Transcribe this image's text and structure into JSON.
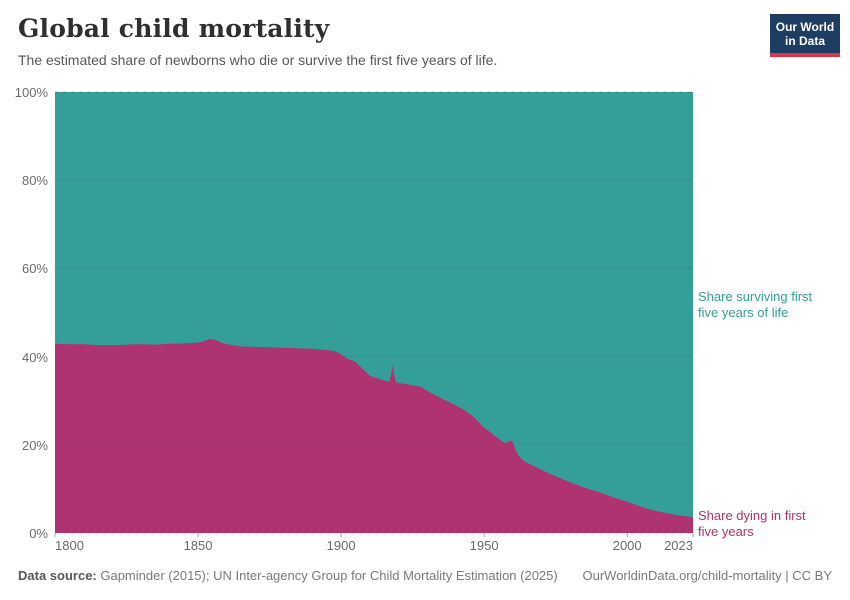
{
  "header": {
    "title": "Global child mortality",
    "subtitle": "The estimated share of newborns who die or survive the first five years of life."
  },
  "logo": {
    "line1": "Our World",
    "line2": "in Data",
    "bg_color": "#1d3d63",
    "bar_color": "#dc3545"
  },
  "annotations": {
    "surviving_label": "Share surviving first\nfive years of life",
    "dying_label": "Share dying in first\nfive years"
  },
  "footer": {
    "source_label": "Data source:",
    "source_text": " Gapminder (2015); UN Inter-agency Group for Child Mortality Estimation (2025)",
    "link_text": "OurWorldinData.org/child-mortality | CC BY"
  },
  "chart_data": {
    "type": "area",
    "stacked": true,
    "title": "Global child mortality",
    "x_range": [
      1800,
      2023
    ],
    "y_range": [
      0,
      100
    ],
    "y_unit": "%",
    "x_ticks": [
      1800,
      1850,
      1900,
      1950,
      2000,
      2023
    ],
    "y_ticks": [
      0,
      20,
      40,
      60,
      80,
      100
    ],
    "grid": "dashed horizontal gridlines drawn over the areas",
    "gridline_color": "rgba(90,90,90,0.35)",
    "tick_color": "#a5a5a5",
    "series": [
      {
        "name": "Share dying in first five years",
        "color": "#ae3370",
        "unit": "%",
        "points": [
          [
            1800,
            42.9
          ],
          [
            1805,
            42.8
          ],
          [
            1810,
            42.8
          ],
          [
            1815,
            42.6
          ],
          [
            1820,
            42.6
          ],
          [
            1825,
            42.7
          ],
          [
            1830,
            42.8
          ],
          [
            1835,
            42.7
          ],
          [
            1840,
            42.9
          ],
          [
            1845,
            43.0
          ],
          [
            1850,
            43.2
          ],
          [
            1852,
            43.5
          ],
          [
            1854,
            44.0
          ],
          [
            1856,
            43.8
          ],
          [
            1858,
            43.2
          ],
          [
            1860,
            42.8
          ],
          [
            1865,
            42.3
          ],
          [
            1870,
            42.2
          ],
          [
            1875,
            42.1
          ],
          [
            1880,
            42.0
          ],
          [
            1885,
            41.9
          ],
          [
            1890,
            41.8
          ],
          [
            1895,
            41.5
          ],
          [
            1898,
            41.2
          ],
          [
            1900,
            40.5
          ],
          [
            1902,
            39.6
          ],
          [
            1905,
            38.8
          ],
          [
            1908,
            36.9
          ],
          [
            1910,
            35.7
          ],
          [
            1912,
            35.2
          ],
          [
            1914,
            34.8
          ],
          [
            1916,
            34.4
          ],
          [
            1917,
            34.3
          ],
          [
            1918,
            38.0
          ],
          [
            1919,
            34.3
          ],
          [
            1920,
            34.0
          ],
          [
            1922,
            33.8
          ],
          [
            1925,
            33.5
          ],
          [
            1928,
            33.1
          ],
          [
            1930,
            32.3
          ],
          [
            1933,
            31.2
          ],
          [
            1936,
            30.2
          ],
          [
            1939,
            29.3
          ],
          [
            1941,
            28.6
          ],
          [
            1943,
            27.9
          ],
          [
            1945,
            27.0
          ],
          [
            1947,
            25.9
          ],
          [
            1949,
            24.5
          ],
          [
            1950,
            23.9
          ],
          [
            1952,
            22.9
          ],
          [
            1954,
            21.9
          ],
          [
            1956,
            20.9
          ],
          [
            1957,
            20.4
          ],
          [
            1958,
            20.6
          ],
          [
            1959,
            21.0
          ],
          [
            1960,
            20.6
          ],
          [
            1961,
            18.8
          ],
          [
            1962,
            17.6
          ],
          [
            1963,
            16.9
          ],
          [
            1964,
            16.3
          ],
          [
            1965,
            15.9
          ],
          [
            1967,
            15.3
          ],
          [
            1970,
            14.3
          ],
          [
            1973,
            13.4
          ],
          [
            1976,
            12.6
          ],
          [
            1980,
            11.5
          ],
          [
            1983,
            10.8
          ],
          [
            1986,
            10.1
          ],
          [
            1990,
            9.3
          ],
          [
            1993,
            8.6
          ],
          [
            1996,
            7.9
          ],
          [
            2000,
            7.1
          ],
          [
            2003,
            6.4
          ],
          [
            2006,
            5.7
          ],
          [
            2010,
            5.0
          ],
          [
            2013,
            4.6
          ],
          [
            2016,
            4.2
          ],
          [
            2019,
            3.9
          ],
          [
            2023,
            3.6
          ]
        ]
      },
      {
        "name": "Share surviving first five years of life",
        "color": "#349e98",
        "unit": "%",
        "rule": "100 minus share dying in first five years (series stack to 100%)"
      }
    ]
  }
}
